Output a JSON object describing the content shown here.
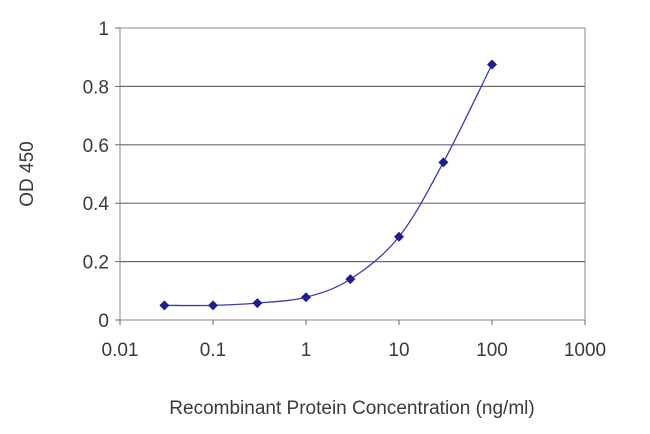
{
  "chart_data": {
    "type": "scatter",
    "title": "",
    "xlabel": "Recombinant Protein Concentration (ng/ml)",
    "ylabel": "OD 450",
    "x_scale": "log",
    "xlim": [
      0.01,
      1000
    ],
    "ylim": [
      0,
      1
    ],
    "x_ticks": [
      0.01,
      0.1,
      1,
      10,
      100,
      1000
    ],
    "x_tick_labels": [
      "0.01",
      "0.1",
      "1",
      "10",
      "100",
      "1000"
    ],
    "y_ticks": [
      0,
      0.2,
      0.4,
      0.6,
      0.8,
      1
    ],
    "y_tick_labels": [
      "0",
      "0.2",
      "0.4",
      "0.6",
      "0.8",
      "1"
    ],
    "grid": "horizontal",
    "legend": "none",
    "series": [
      {
        "x": [
          0.03,
          0.1,
          0.3,
          1,
          3,
          10,
          30,
          100
        ],
        "y": [
          0.05,
          0.05,
          0.058,
          0.078,
          0.14,
          0.285,
          0.54,
          0.875
        ],
        "marker": "diamond",
        "fitted_curve": true,
        "color": "#1f1f8f"
      }
    ]
  }
}
